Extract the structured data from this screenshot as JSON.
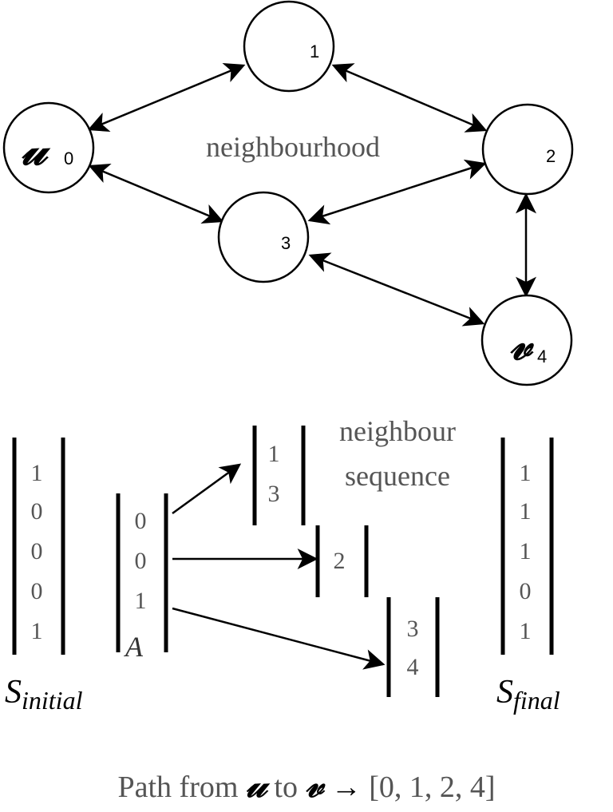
{
  "graph": {
    "nodes": [
      {
        "id": "1",
        "index_label": "1",
        "letter": ""
      },
      {
        "id": "u",
        "index_label": "0",
        "letter": "𝓊"
      },
      {
        "id": "2",
        "index_label": "2",
        "letter": ""
      },
      {
        "id": "3",
        "index_label": "3",
        "letter": ""
      },
      {
        "id": "v",
        "index_label": "4",
        "letter": "𝓋"
      }
    ],
    "edges": [
      {
        "from": "u",
        "to": "1",
        "directed": "both"
      },
      {
        "from": "1",
        "to": "2",
        "directed": "both"
      },
      {
        "from": "u",
        "to": "3",
        "directed": "both"
      },
      {
        "from": "3",
        "to": "2",
        "directed": "both"
      },
      {
        "from": "2",
        "to": "v",
        "directed": "both"
      },
      {
        "from": "3",
        "to": "v",
        "directed": "both"
      }
    ],
    "region_label": "neighbourhood"
  },
  "vectors": {
    "s_initial": {
      "values": [
        "1",
        "0",
        "0",
        "0",
        "1"
      ],
      "label_main": "S",
      "label_sub": "initial"
    },
    "a": {
      "values": [
        "0",
        "0",
        "1"
      ],
      "label": "A"
    },
    "neighbour_lists": [
      {
        "values": [
          "1",
          "3"
        ]
      },
      {
        "values": [
          "2"
        ]
      },
      {
        "values": [
          "3",
          "4"
        ]
      }
    ],
    "neighbour_label_line1": "neighbour",
    "neighbour_label_line2": "sequence",
    "s_final": {
      "values": [
        "1",
        "1",
        "1",
        "0",
        "1"
      ],
      "label_main": "S",
      "label_sub": "final"
    }
  },
  "footer": {
    "prefix": "Path from ",
    "u": "𝓊",
    "mid": " to ",
    "v": "𝓋",
    "arrow": " → ",
    "path": "[0, 1, 2, 4]"
  }
}
